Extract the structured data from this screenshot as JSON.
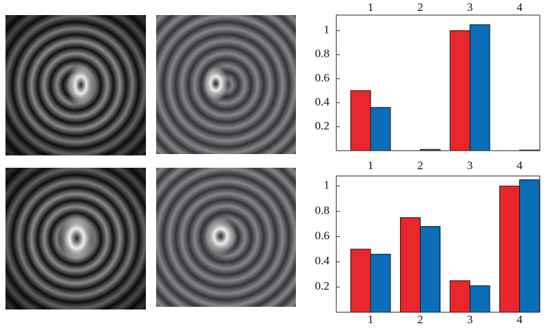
{
  "chart_data": [
    {
      "type": "bar",
      "categories": [
        "1",
        "2",
        "3",
        "4"
      ],
      "series": [
        {
          "color": "#e8262b",
          "values": [
            0.5,
            0,
            1.0,
            0
          ]
        },
        {
          "color": "#0a6eb8",
          "values": [
            0.36,
            0.01,
            1.05,
            0.005
          ]
        }
      ],
      "ylim": [
        0,
        1.13
      ],
      "yticks": [
        0.2,
        0.4,
        0.6,
        0.8,
        1
      ],
      "grid": false
    },
    {
      "type": "bar",
      "categories": [
        "1",
        "2",
        "3",
        "4"
      ],
      "series": [
        {
          "color": "#e8262b",
          "values": [
            0.5,
            0.75,
            0.25,
            1.0
          ]
        },
        {
          "color": "#0a6eb8",
          "values": [
            0.46,
            0.68,
            0.21,
            1.05
          ]
        }
      ],
      "ylim": [
        0,
        1.08
      ],
      "yticks": [
        0.2,
        0.4,
        0.6,
        0.8,
        1
      ],
      "grid": false
    }
  ]
}
